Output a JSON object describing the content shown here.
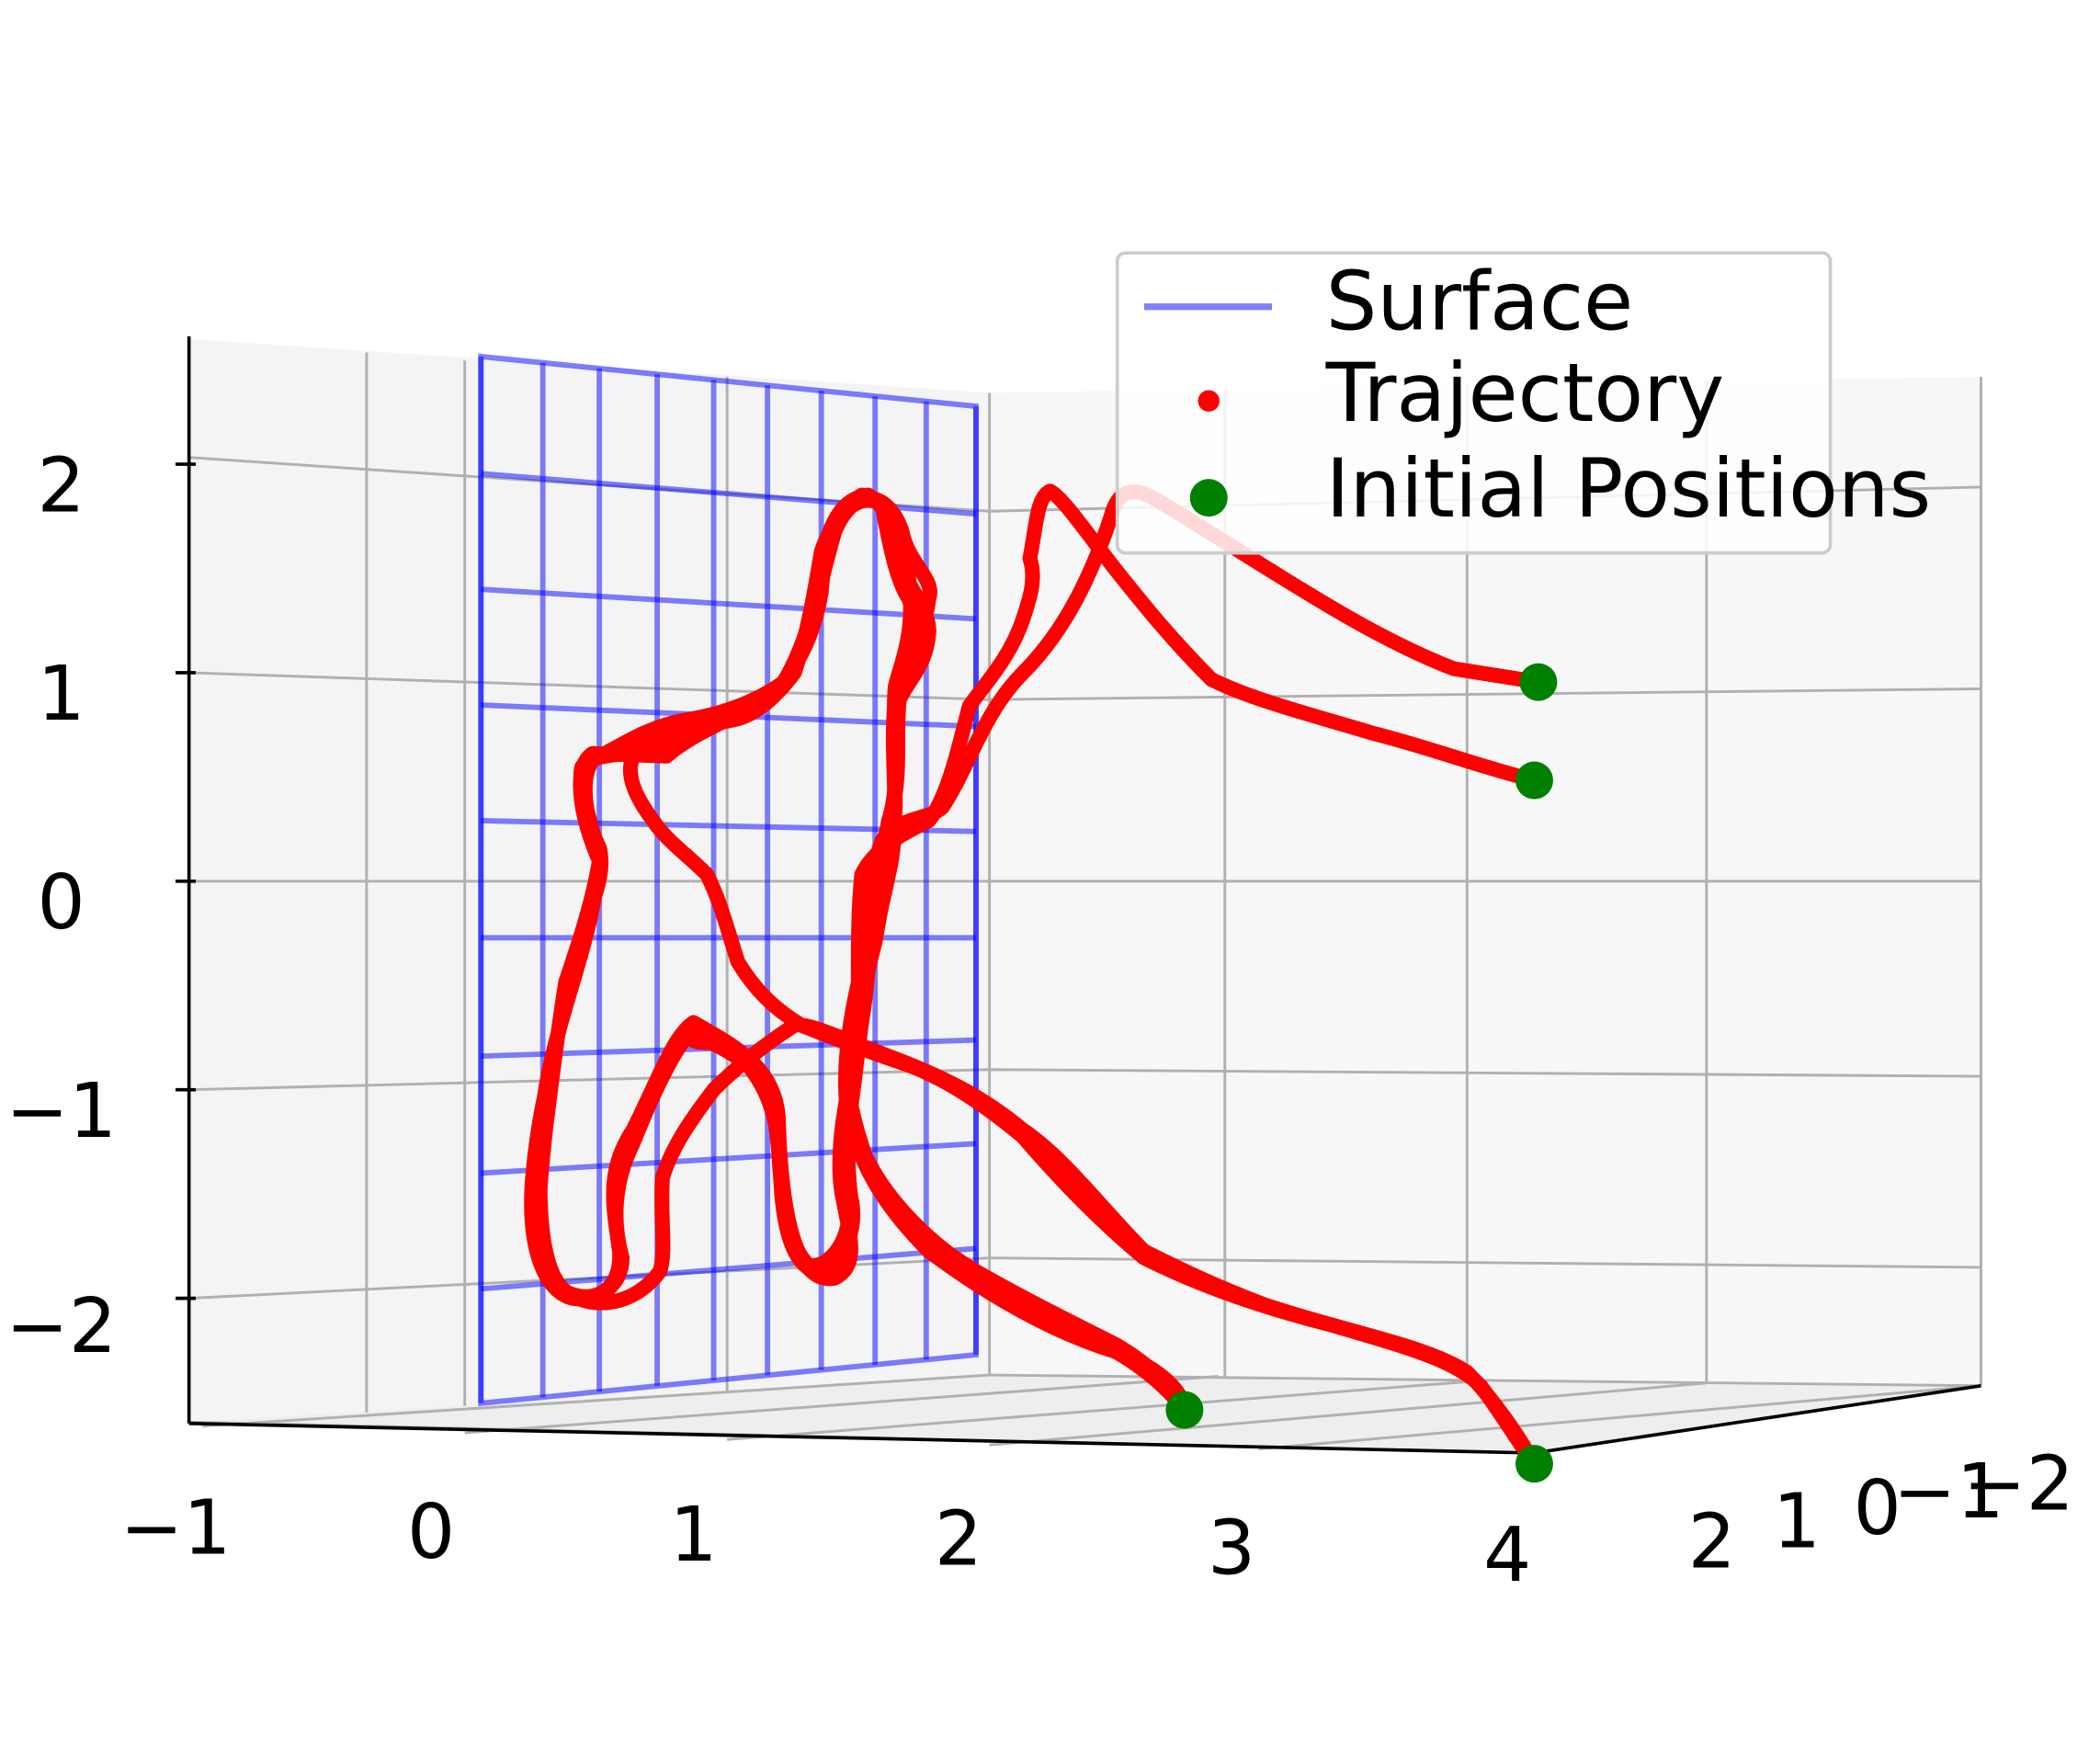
{
  "chart_data": {
    "type": "line3d",
    "title": "",
    "xlabel": "",
    "ylabel": "",
    "zlabel": "",
    "x_ticks": [
      "−1",
      "0",
      "1",
      "2",
      "3",
      "4"
    ],
    "y_ticks": [
      "2",
      "1",
      "0",
      "−1",
      "−2"
    ],
    "z_ticks": [
      "2",
      "1",
      "0",
      "−1",
      "−2"
    ],
    "xlim": [
      -1,
      4
    ],
    "zlim": [
      -2.5,
      2.5
    ],
    "grid": true,
    "legend": {
      "placement": "top-right",
      "entries": [
        {
          "label": "Surface",
          "marker": "line",
          "color": "#0000ff"
        },
        {
          "label": "Trajectory",
          "marker": "dot",
          "color": "#ff0000"
        },
        {
          "label": "Initial Positions",
          "marker": "dot",
          "color": "#008000"
        }
      ]
    },
    "surface": {
      "type": "vertical plane",
      "x_range": [
        0,
        2
      ],
      "z_range": [
        -2.5,
        2.5
      ],
      "color": "#0000ff"
    },
    "initial_positions": [
      {
        "x": 3.7,
        "z": 1.0
      },
      {
        "x": 3.7,
        "z": 0.55
      },
      {
        "x": 2.3,
        "z": -2.6
      },
      {
        "x": 3.7,
        "z": -2.75
      }
    ],
    "colors": {
      "trajectory": "#ff0000",
      "initial": "#008000",
      "surface": "#0000ff",
      "pane": "#f4f4f4",
      "grid": "#b0b0b0"
    }
  }
}
